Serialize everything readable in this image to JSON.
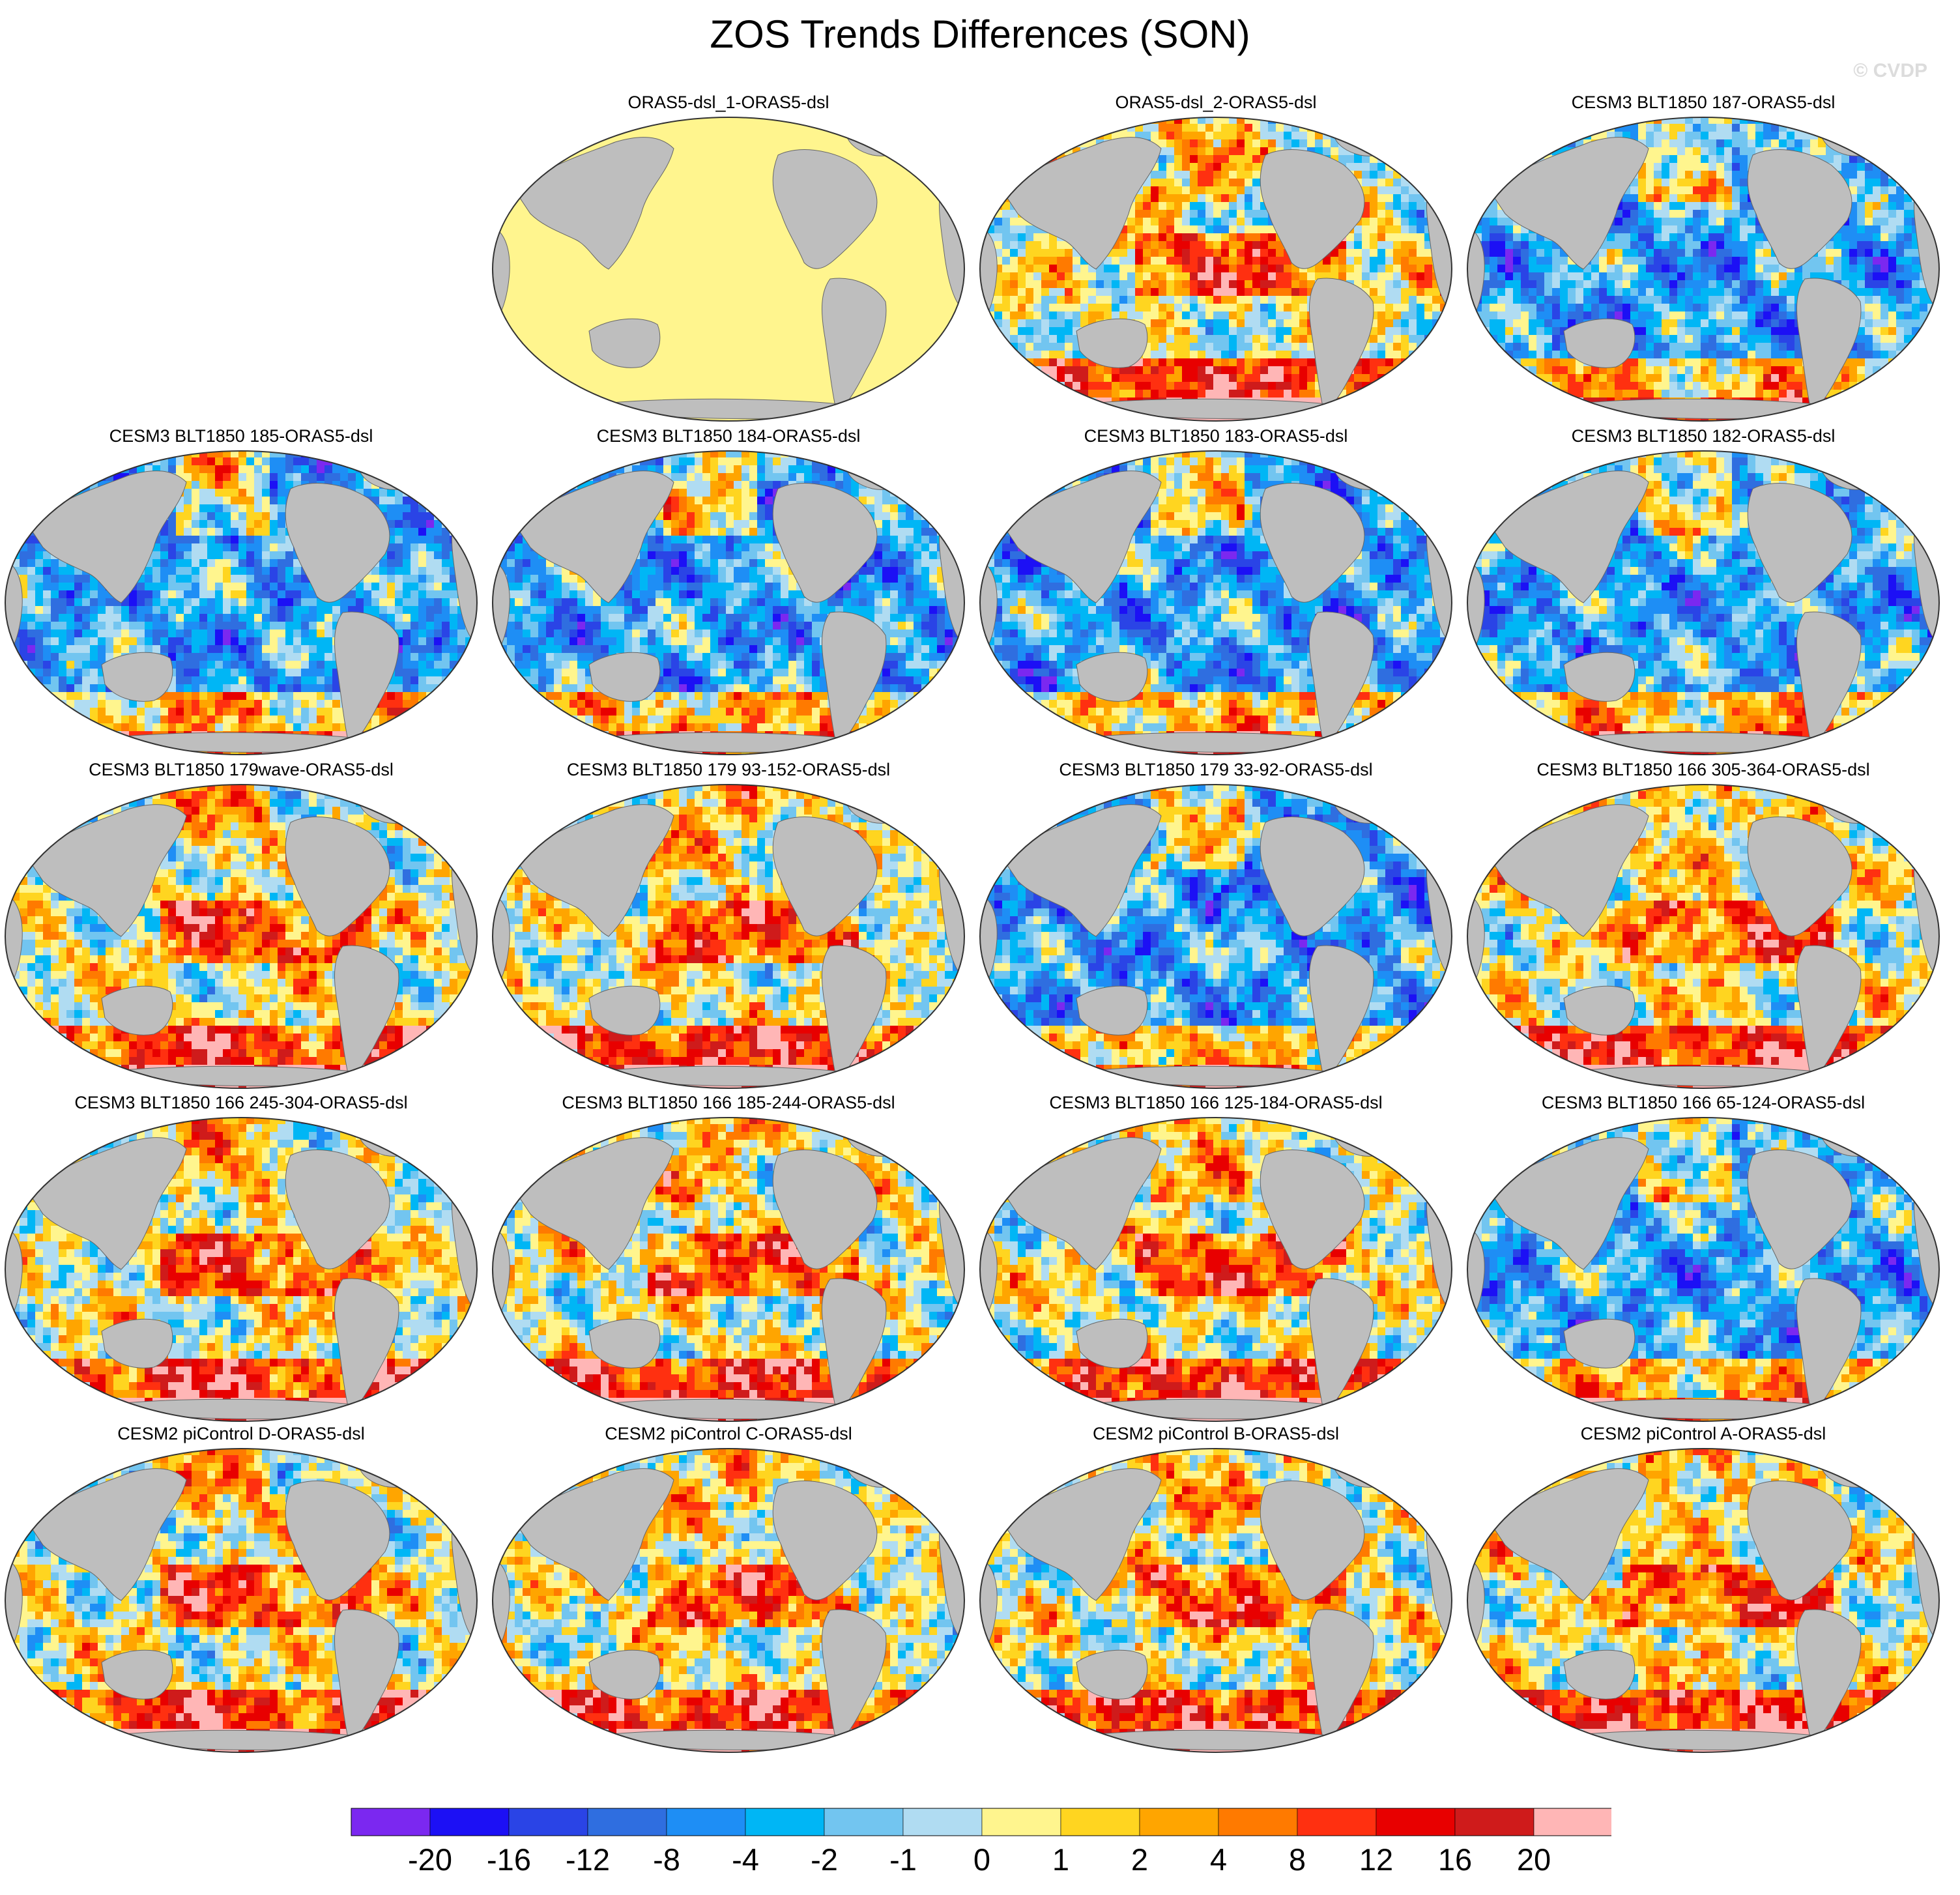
{
  "title": "ZOS Trends Differences (SON)",
  "watermark": "© CVDP",
  "panels": [
    {
      "label": "ORAS5-dsl_1-ORAS5-dsl",
      "pattern": "uniform-zero"
    },
    {
      "label": "ORAS5-dsl_2-ORAS5-dsl",
      "pattern": "mixed-positive"
    },
    {
      "label": "CESM3 BLT1850 187-ORAS5-dsl",
      "pattern": "mostly-negative"
    },
    {
      "label": "CESM3 BLT1850 185-ORAS5-dsl",
      "pattern": "mostly-negative"
    },
    {
      "label": "CESM3 BLT1850 184-ORAS5-dsl",
      "pattern": "mostly-negative"
    },
    {
      "label": "CESM3 BLT1850 183-ORAS5-dsl",
      "pattern": "mostly-negative"
    },
    {
      "label": "CESM3 BLT1850 182-ORAS5-dsl",
      "pattern": "mostly-negative"
    },
    {
      "label": "CESM3 BLT1850 179wave-ORAS5-dsl",
      "pattern": "mixed-positive"
    },
    {
      "label": "CESM3 BLT1850 179 93-152-ORAS5-dsl",
      "pattern": "mixed-positive"
    },
    {
      "label": "CESM3 BLT1850 179 33-92-ORAS5-dsl",
      "pattern": "mostly-negative"
    },
    {
      "label": "CESM3 BLT1850 166 305-364-ORAS5-dsl",
      "pattern": "mixed-positive"
    },
    {
      "label": "CESM3 BLT1850 166 245-304-ORAS5-dsl",
      "pattern": "mixed-positive"
    },
    {
      "label": "CESM3 BLT1850 166 185-244-ORAS5-dsl",
      "pattern": "mixed-positive"
    },
    {
      "label": "CESM3 BLT1850 166 125-184-ORAS5-dsl",
      "pattern": "mixed-positive"
    },
    {
      "label": "CESM3 BLT1850 166 65-124-ORAS5-dsl",
      "pattern": "mostly-negative"
    },
    {
      "label": "CESM2 piControl D-ORAS5-dsl",
      "pattern": "mixed-positive"
    },
    {
      "label": "CESM2 piControl C-ORAS5-dsl",
      "pattern": "mixed-positive"
    },
    {
      "label": "CESM2 piControl B-ORAS5-dsl",
      "pattern": "mixed-positive"
    },
    {
      "label": "CESM2 piControl A-ORAS5-dsl",
      "pattern": "mixed-positive"
    }
  ],
  "colorbar": {
    "labels": [
      "-20",
      "-16",
      "-12",
      "-8",
      "-4",
      "-2",
      "-1",
      "0",
      "1",
      "2",
      "4",
      "8",
      "12",
      "16",
      "20"
    ],
    "colors": [
      "#7b28f0",
      "#1c10f5",
      "#2a44e6",
      "#2f6ee0",
      "#1e8ef5",
      "#00b6f5",
      "#72c5f0",
      "#b0dcf2",
      "#fff58e",
      "#ffd520",
      "#ffa500",
      "#ff7a00",
      "#ff3010",
      "#e80000",
      "#cf1b1b",
      "#ffb6b6"
    ],
    "land_color": "#bebebe"
  }
}
